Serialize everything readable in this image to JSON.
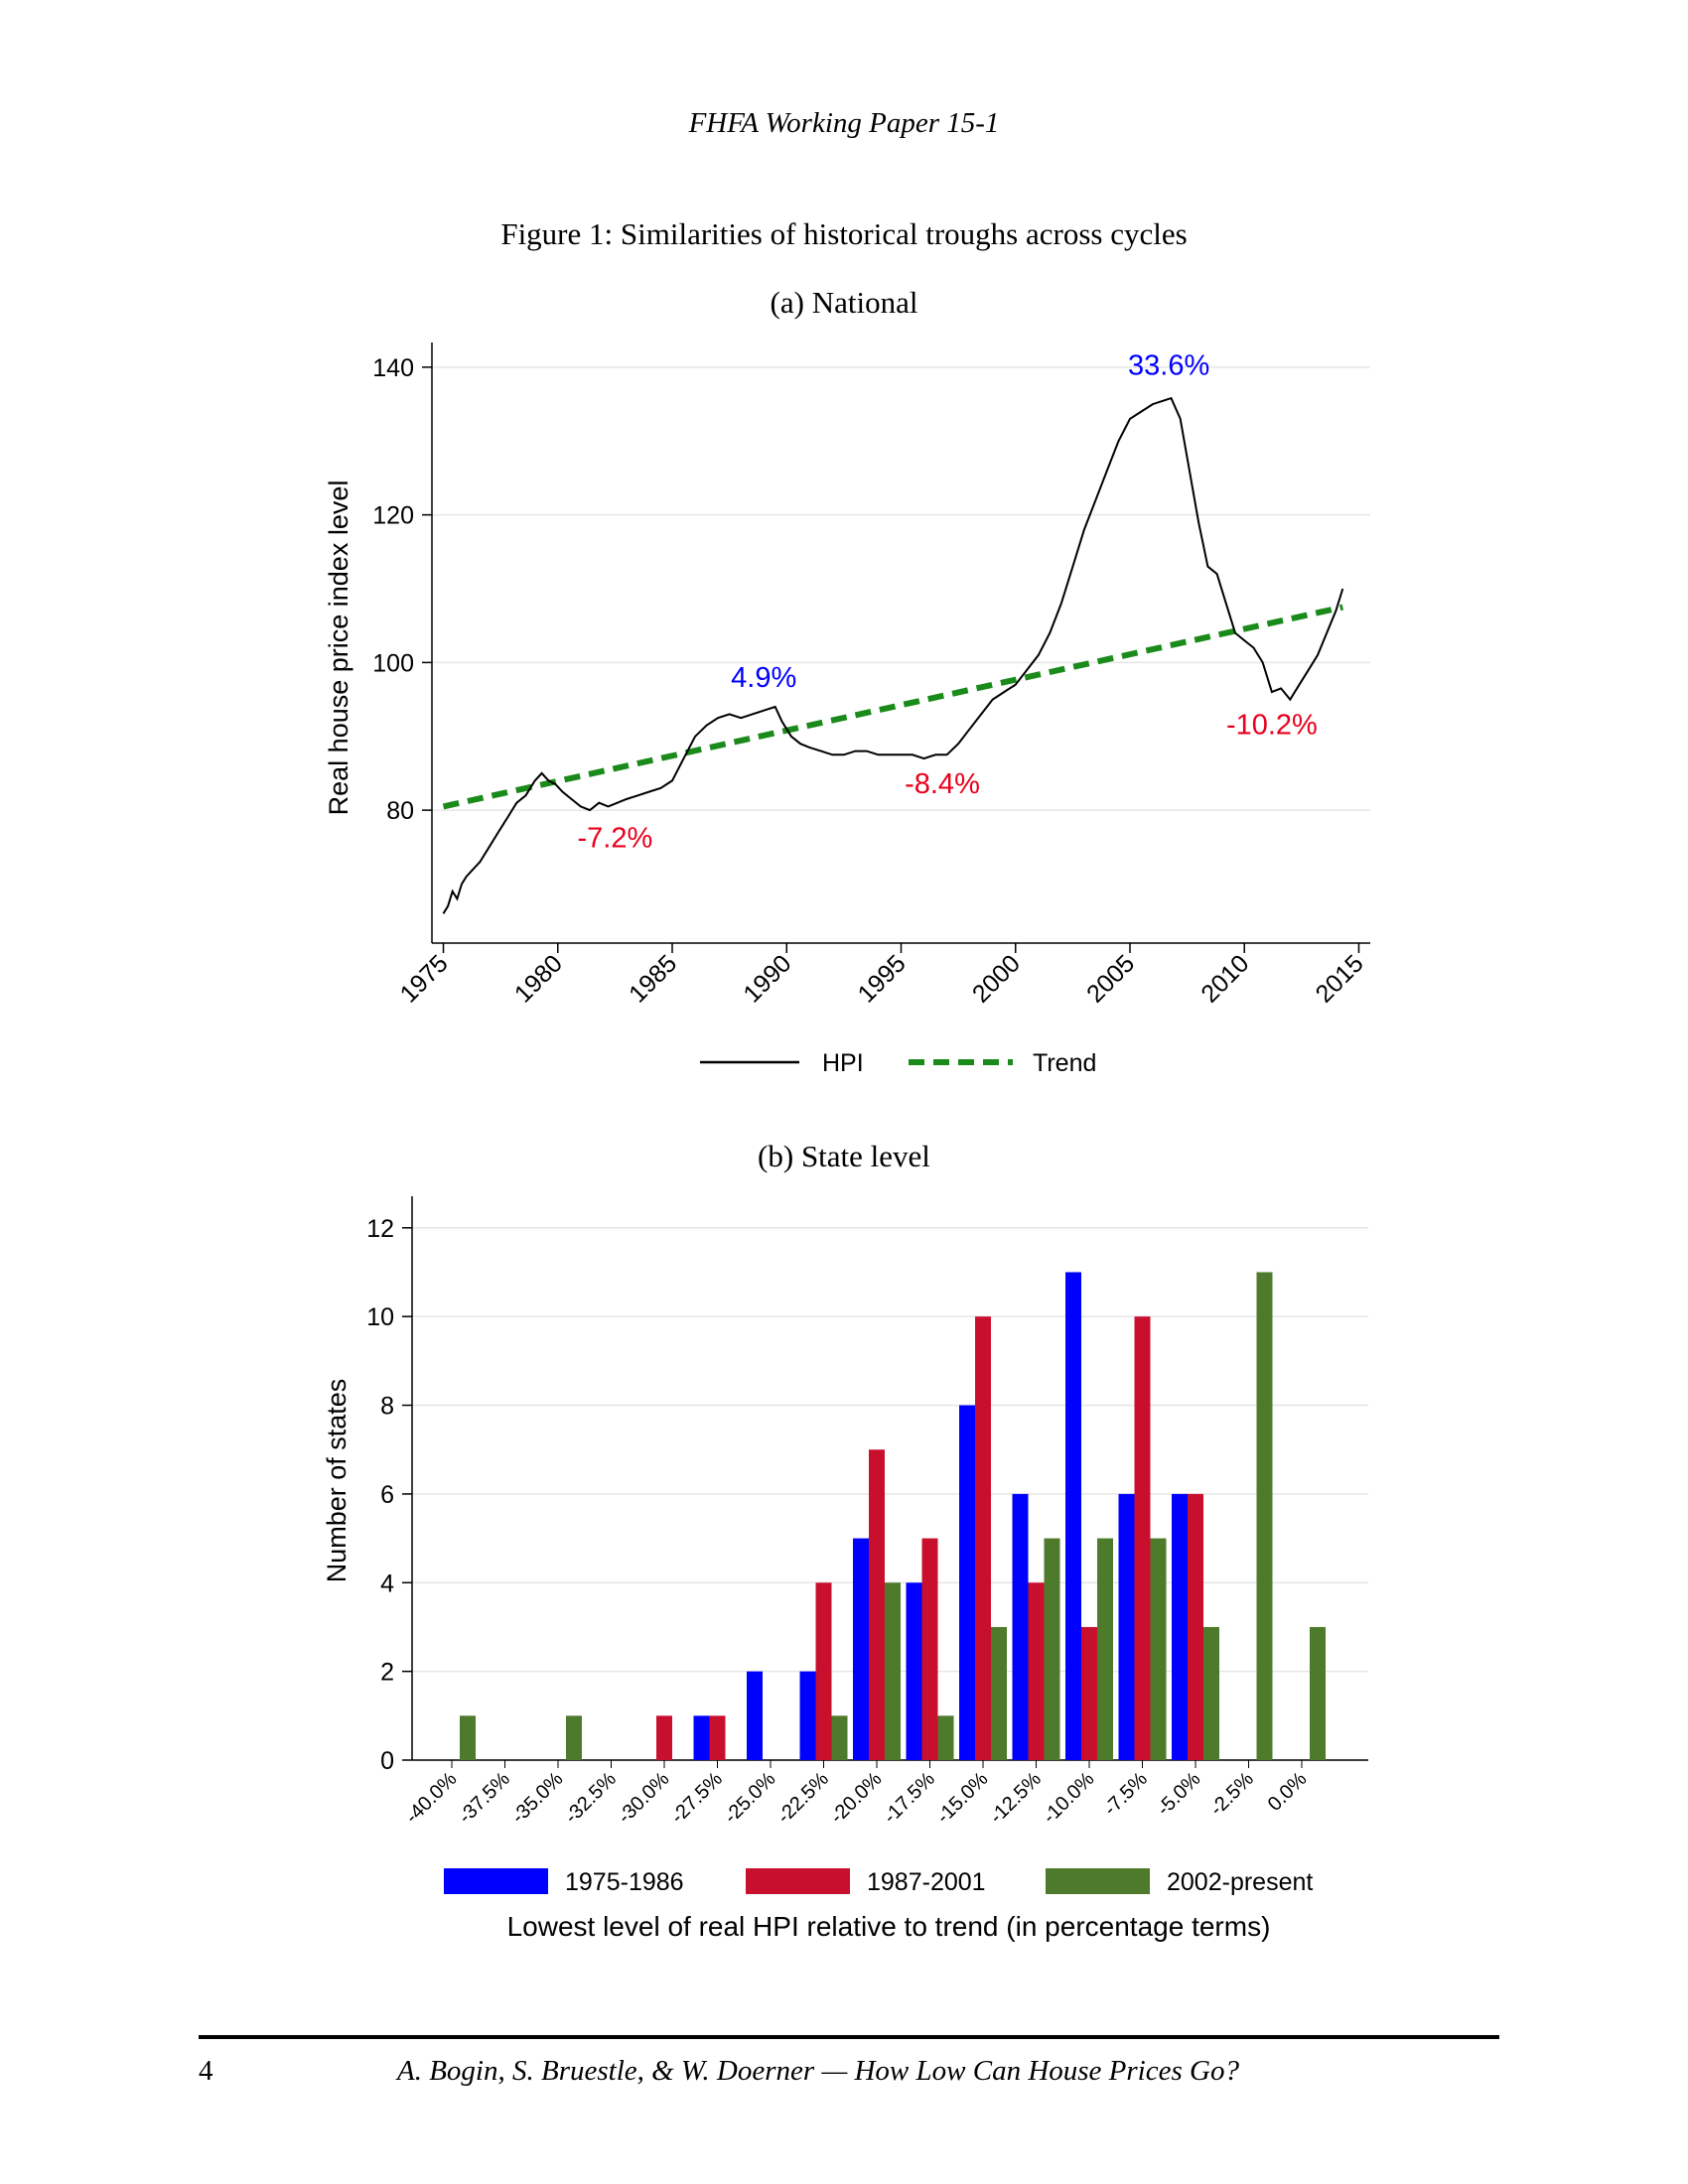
{
  "header": "FHFA Working Paper 15-1",
  "figure_title": "Figure 1: Similarities of historical troughs across cycles",
  "panel_a": {
    "subtitle": "(a) National"
  },
  "panel_b": {
    "subtitle": "(b) State level"
  },
  "footer": {
    "page_number": "4",
    "citation": "A. Bogin, S. Bruestle, & W. Doerner — How Low Can House Prices Go?"
  },
  "colors": {
    "hpi": "#000000",
    "trend": "#1a8a1a",
    "blue": "#0000ff",
    "red": "#e8001c",
    "s1975": "#0000ff",
    "s1987": "#c8102e",
    "s2002": "#4e7a2b",
    "grid": "#e6e6e6"
  },
  "chart_data": [
    {
      "type": "line",
      "ylabel": "Real house price index level",
      "xlim": [
        1974.5,
        2015.5
      ],
      "ylim": [
        62,
        142
      ],
      "yticks": [
        80,
        100,
        120,
        140
      ],
      "xticks": [
        "1975",
        "1980",
        "1985",
        "1990",
        "1995",
        "2000",
        "2005",
        "2010",
        "2015"
      ],
      "legend": [
        "HPI",
        "Trend"
      ],
      "series": [
        {
          "name": "HPI",
          "x": [
            1975.0,
            1975.2,
            1975.4,
            1975.6,
            1975.8,
            1976.0,
            1976.3,
            1976.6,
            1977.0,
            1977.4,
            1977.8,
            1978.2,
            1978.6,
            1979.0,
            1979.3,
            1979.6,
            1979.9,
            1980.2,
            1980.6,
            1981.0,
            1981.4,
            1981.8,
            1982.2,
            1982.6,
            1983.0,
            1983.5,
            1984.0,
            1984.5,
            1985.0,
            1985.5,
            1986.0,
            1986.5,
            1987.0,
            1987.5,
            1988.0,
            1988.5,
            1989.0,
            1989.5,
            1989.8,
            1990.2,
            1990.6,
            1991.0,
            1991.5,
            1992.0,
            1992.5,
            1993.0,
            1993.5,
            1994.0,
            1994.5,
            1995.0,
            1995.5,
            1996.0,
            1996.5,
            1997.0,
            1997.5,
            1998.0,
            1998.5,
            1999.0,
            1999.5,
            2000.0,
            2000.5,
            2001.0,
            2001.5,
            2002.0,
            2002.5,
            2003.0,
            2003.5,
            2004.0,
            2004.5,
            2005.0,
            2005.5,
            2006.0,
            2006.5,
            2006.8,
            2007.2,
            2007.6,
            2008.0,
            2008.4,
            2008.8,
            2009.2,
            2009.6,
            2010.0,
            2010.4,
            2010.8,
            2011.2,
            2011.6,
            2012.0,
            2012.4,
            2012.8,
            2013.2,
            2013.6,
            2014.0,
            2014.3
          ],
          "y": [
            66,
            67,
            69,
            68,
            70,
            71,
            72,
            73,
            75,
            77,
            79,
            81,
            82,
            84,
            85,
            84,
            83.5,
            82.5,
            81.5,
            80.5,
            80,
            81,
            80.5,
            81,
            81.5,
            82,
            82.5,
            83,
            84,
            87,
            90,
            91.5,
            92.5,
            93,
            92.5,
            93,
            93.5,
            94,
            92,
            90,
            89,
            88.5,
            88,
            87.5,
            87.5,
            88,
            88,
            87.5,
            87.5,
            87.5,
            87.5,
            87,
            87.5,
            87.5,
            89,
            91,
            93,
            95,
            96,
            97,
            99,
            101,
            104,
            108,
            113,
            118,
            122,
            126,
            130,
            133,
            134,
            135,
            135.5,
            135.8,
            133,
            126,
            119,
            113,
            112,
            108,
            104,
            103,
            102,
            100,
            96,
            96.5,
            95,
            97,
            99,
            101,
            104,
            107,
            110
          ]
        },
        {
          "name": "Trend",
          "x": [
            1975,
            2014.3
          ],
          "y": [
            80.5,
            107.5
          ]
        }
      ],
      "annotations": [
        {
          "text": "33.6%",
          "x": 2006.7,
          "y": 139,
          "color": "blue"
        },
        {
          "text": "4.9%",
          "x": 1989.0,
          "y": 96.7,
          "color": "blue"
        },
        {
          "text": "-7.2%",
          "x": 1982.5,
          "y": 75.0,
          "color": "red"
        },
        {
          "text": "-8.4%",
          "x": 1996.8,
          "y": 82.3,
          "color": "red"
        },
        {
          "text": "-10.2%",
          "x": 2011.2,
          "y": 90.3,
          "color": "red"
        }
      ]
    },
    {
      "type": "bar",
      "ylabel": "Number of states",
      "xlabel": "Lowest level of real HPI relative to trend (in percentage terms)",
      "ylim": [
        0,
        12.6
      ],
      "yticks": [
        0,
        2,
        4,
        6,
        8,
        10,
        12
      ],
      "categories": [
        "-40.0%",
        "-37.5%",
        "-35.0%",
        "-32.5%",
        "-30.0%",
        "-27.5%",
        "-25.0%",
        "-22.5%",
        "-20.0%",
        "-17.5%",
        "-15.0%",
        "-12.5%",
        "-10.0%",
        "-7.5%",
        "-5.0%",
        "-2.5%",
        "0.0%"
      ],
      "series": [
        {
          "name": "1975-1986",
          "values": [
            0,
            0,
            0,
            0,
            0,
            1,
            2,
            2,
            5,
            4,
            8,
            6,
            11,
            6,
            6,
            0,
            0
          ]
        },
        {
          "name": "1987-2001",
          "values": [
            0,
            0,
            0,
            0,
            1,
            1,
            0,
            4,
            7,
            5,
            10,
            4,
            3,
            10,
            6,
            0,
            0
          ]
        },
        {
          "name": "2002-present",
          "values": [
            1,
            0,
            1,
            0,
            0,
            0,
            0,
            1,
            4,
            1,
            3,
            5,
            5,
            5,
            3,
            11,
            3
          ]
        }
      ]
    }
  ]
}
